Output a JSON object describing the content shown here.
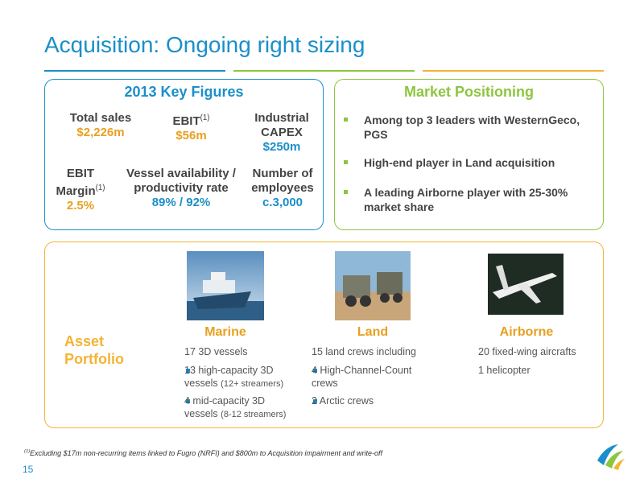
{
  "title": "Acquisition: Ongoing right sizing",
  "key_figures": {
    "heading": "2013 Key Figures",
    "items": [
      {
        "label": "Total sales",
        "value": "$2,226m"
      },
      {
        "label": "EBIT",
        "sup": "(1)",
        "value": "$56m"
      },
      {
        "label": "Industrial CAPEX",
        "value": "$250m"
      },
      {
        "label": "EBIT Margin",
        "sup": "(1)",
        "value": "2.5%"
      },
      {
        "label": "Vessel availability / productivity rate",
        "value": "89% / 92%"
      },
      {
        "label": "Number of employees",
        "value": "c.3,000"
      }
    ]
  },
  "market": {
    "heading": "Market Positioning",
    "bullets": [
      "Among top 3 leaders with WesternGeco,  PGS",
      "High-end player in Land acquisition",
      "A leading  Airborne player with 25-30% market share"
    ]
  },
  "portfolio": {
    "heading": "Asset Portfolio",
    "columns": [
      {
        "name": "Marine",
        "intro": "17 3D vessels",
        "bullets": [
          {
            "text": "13 high-capacity 3D vessels",
            "note": "(12+ streamers)"
          },
          {
            "text": "4 mid-capacity 3D vessels",
            "note": "(8-12 streamers)"
          }
        ]
      },
      {
        "name": "Land",
        "intro": "15 land crews including",
        "bullets": [
          {
            "text": "4 High-Channel-Count crews"
          },
          {
            "text": "2 Arctic crews"
          }
        ]
      },
      {
        "name": "Airborne",
        "intro": "20 fixed-wing aircrafts",
        "lines": [
          "1 helicopter"
        ]
      }
    ]
  },
  "footnote": {
    "sup": "(1)",
    "text": "Excluding $17m non-recurring items linked to Fugro (NRFI) and $800m to Acquisition impairment and write-off"
  },
  "page_number": "15"
}
